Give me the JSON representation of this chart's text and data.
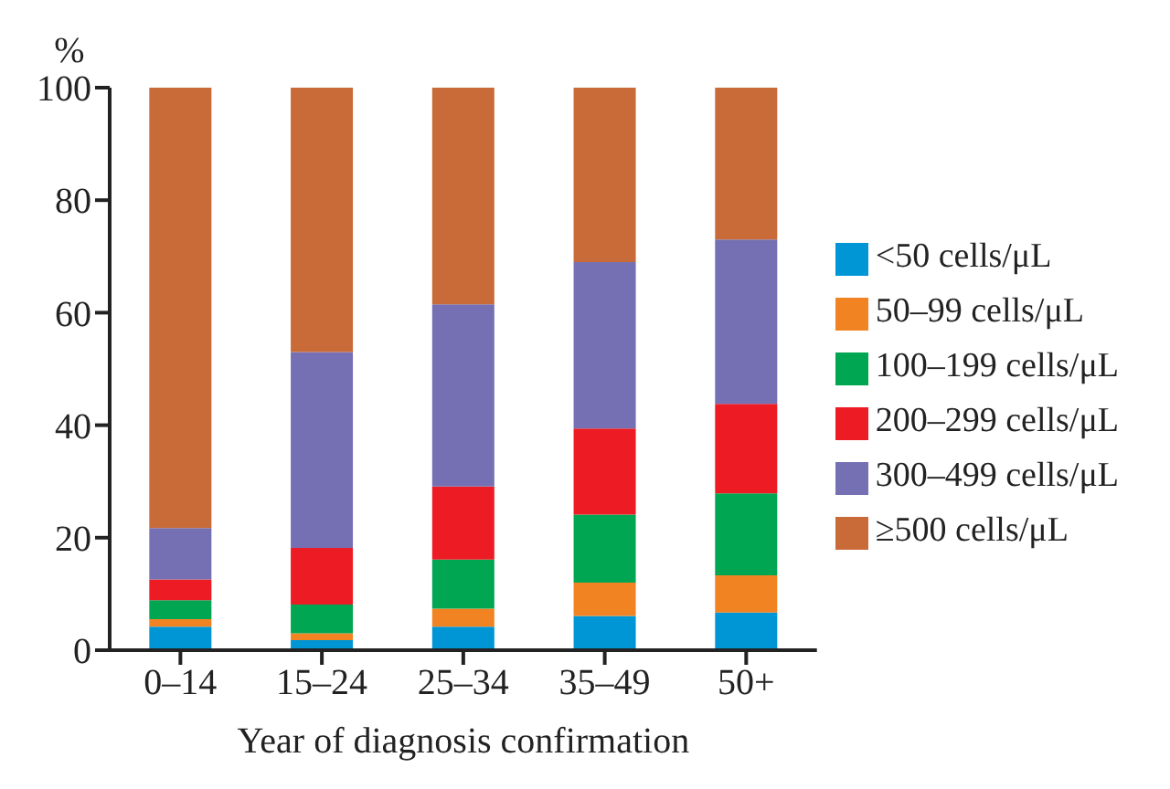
{
  "chart_data": {
    "type": "bar",
    "stacked": true,
    "ylabel": "%",
    "xlabel": "Year of diagnosis confirmation",
    "categories": [
      "0–14",
      "15–24",
      "25–34",
      "35–49",
      "50+"
    ],
    "series": [
      {
        "name": "<50 cells/μL",
        "color": "#0096d6",
        "values": [
          4.2,
          1.8,
          4.2,
          6.1,
          6.7
        ]
      },
      {
        "name": "50–99 cells/μL",
        "color": "#f28323",
        "values": [
          1.3,
          1.2,
          3.2,
          5.9,
          6.6
        ]
      },
      {
        "name": "100–199 cells/μL",
        "color": "#00a651",
        "values": [
          3.4,
          5.1,
          8.7,
          12.1,
          14.6
        ]
      },
      {
        "name": "200–299 cells/μL",
        "color": "#ed1c24",
        "values": [
          3.7,
          10.1,
          13.0,
          15.3,
          15.9
        ]
      },
      {
        "name": "300–499 cells/μL",
        "color": "#7570b3",
        "values": [
          9.1,
          34.8,
          32.4,
          29.6,
          29.2
        ]
      },
      {
        "name": "≥500 cells/μL",
        "color": "#c86b38",
        "values": [
          78.3,
          47.0,
          38.5,
          31.0,
          27.0
        ]
      }
    ],
    "ylim": [
      0,
      100
    ],
    "yticks": [
      0,
      20,
      40,
      60,
      80,
      100
    ],
    "grid": false,
    "legend": "right"
  }
}
